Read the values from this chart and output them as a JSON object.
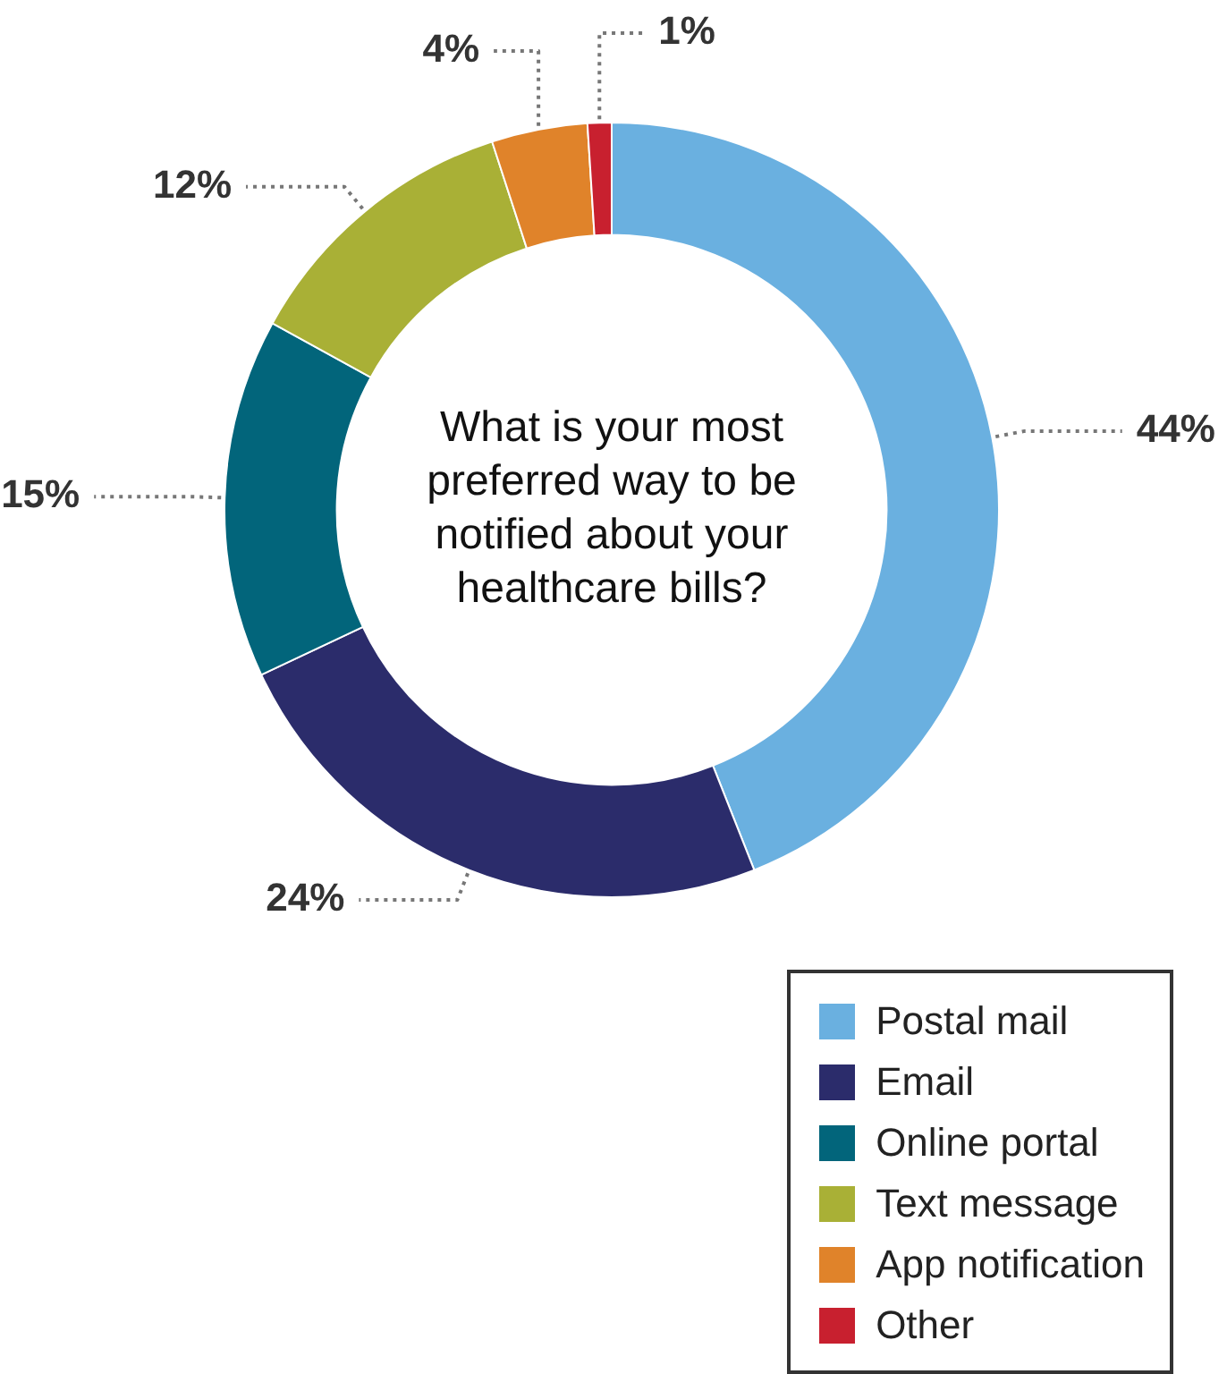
{
  "chart_data": {
    "type": "donut",
    "title": "What is your most preferred way to be notified about your healthcare bills?",
    "categories": [
      "Postal mail",
      "Email",
      "Online portal",
      "Text message",
      "App notification",
      "Other"
    ],
    "values": [
      44,
      24,
      15,
      12,
      4,
      1
    ],
    "colors": [
      "#6ab0e0",
      "#2b2c6b",
      "#02657b",
      "#a9b036",
      "#e0832a",
      "#c8202f"
    ],
    "value_labels": [
      "44%",
      "24%",
      "15%",
      "12%",
      "4%",
      "1%"
    ],
    "legend": "bottom right"
  }
}
